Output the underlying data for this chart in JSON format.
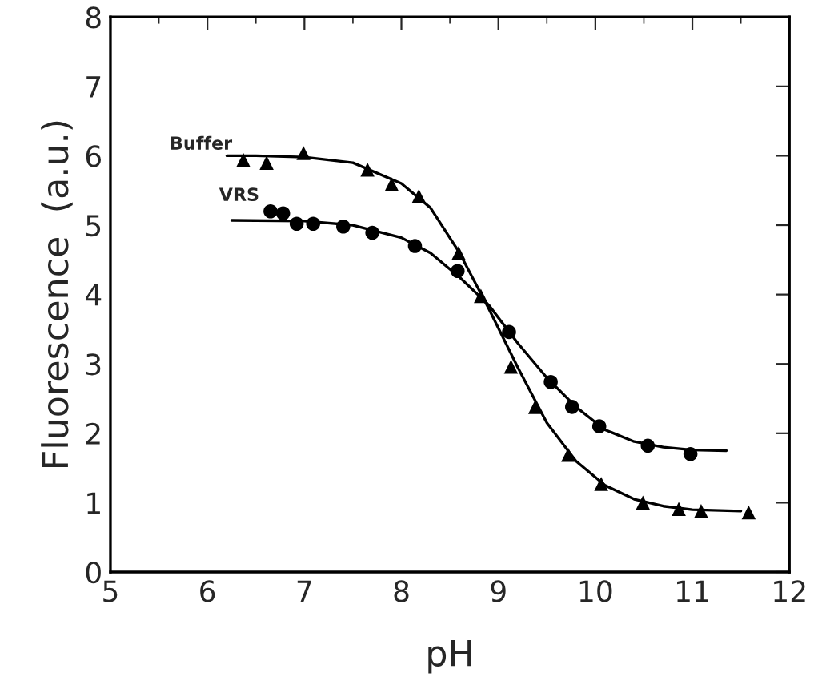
{
  "chart_data": {
    "type": "scatter",
    "xlabel": "pH",
    "ylabel": "Fluorescence  (a.u.)",
    "xlim": [
      5,
      12
    ],
    "xticks": [
      5,
      6,
      7,
      8,
      9,
      10,
      11,
      12
    ],
    "ylim": [
      0,
      8
    ],
    "yticks": [
      0,
      1,
      2,
      3,
      4,
      5,
      6,
      7,
      8
    ],
    "grid": false,
    "legend": false,
    "series": [
      {
        "name": "Buffer",
        "marker": "triangle",
        "color": "#000000",
        "x": [
          6.37,
          6.61,
          6.99,
          7.65,
          7.9,
          8.18,
          8.59,
          8.82,
          9.13,
          9.38,
          9.72,
          10.06,
          10.49,
          10.86,
          11.09,
          11.58
        ],
        "values": [
          5.94,
          5.9,
          6.04,
          5.8,
          5.59,
          5.42,
          4.6,
          3.98,
          2.96,
          2.38,
          1.69,
          1.27,
          1.0,
          0.91,
          0.88,
          0.86
        ]
      },
      {
        "name": "VRS",
        "marker": "circle",
        "color": "#000000",
        "x": [
          6.65,
          6.78,
          6.92,
          7.09,
          7.4,
          7.7,
          8.14,
          8.58,
          9.11,
          9.54,
          9.76,
          10.04,
          10.54,
          10.98
        ],
        "values": [
          5.2,
          5.17,
          5.02,
          5.02,
          4.98,
          4.89,
          4.7,
          4.34,
          3.46,
          2.74,
          2.38,
          2.1,
          1.82,
          1.7
        ]
      },
      {
        "type": "line",
        "marker": "none",
        "line_style": "solid",
        "color": "#000000",
        "x": [
          6.2,
          6.5,
          7,
          7.5,
          8,
          8.3,
          8.6,
          8.9,
          9.2,
          9.5,
          9.8,
          10.1,
          10.4,
          10.7,
          11,
          11.5
        ],
        "values": [
          6.0,
          6.0,
          5.98,
          5.9,
          5.6,
          5.25,
          4.6,
          3.8,
          2.95,
          2.15,
          1.6,
          1.25,
          1.05,
          0.95,
          0.9,
          0.88
        ]
      },
      {
        "type": "line",
        "marker": "none",
        "line_style": "solid",
        "color": "#000000",
        "x": [
          6.25,
          7,
          7.5,
          8,
          8.3,
          8.6,
          8.9,
          9.2,
          9.5,
          9.8,
          10.1,
          10.4,
          10.7,
          11,
          11.35
        ],
        "values": [
          5.07,
          5.06,
          5.0,
          4.82,
          4.6,
          4.25,
          3.85,
          3.3,
          2.8,
          2.38,
          2.05,
          1.88,
          1.8,
          1.76,
          1.75
        ]
      }
    ]
  }
}
